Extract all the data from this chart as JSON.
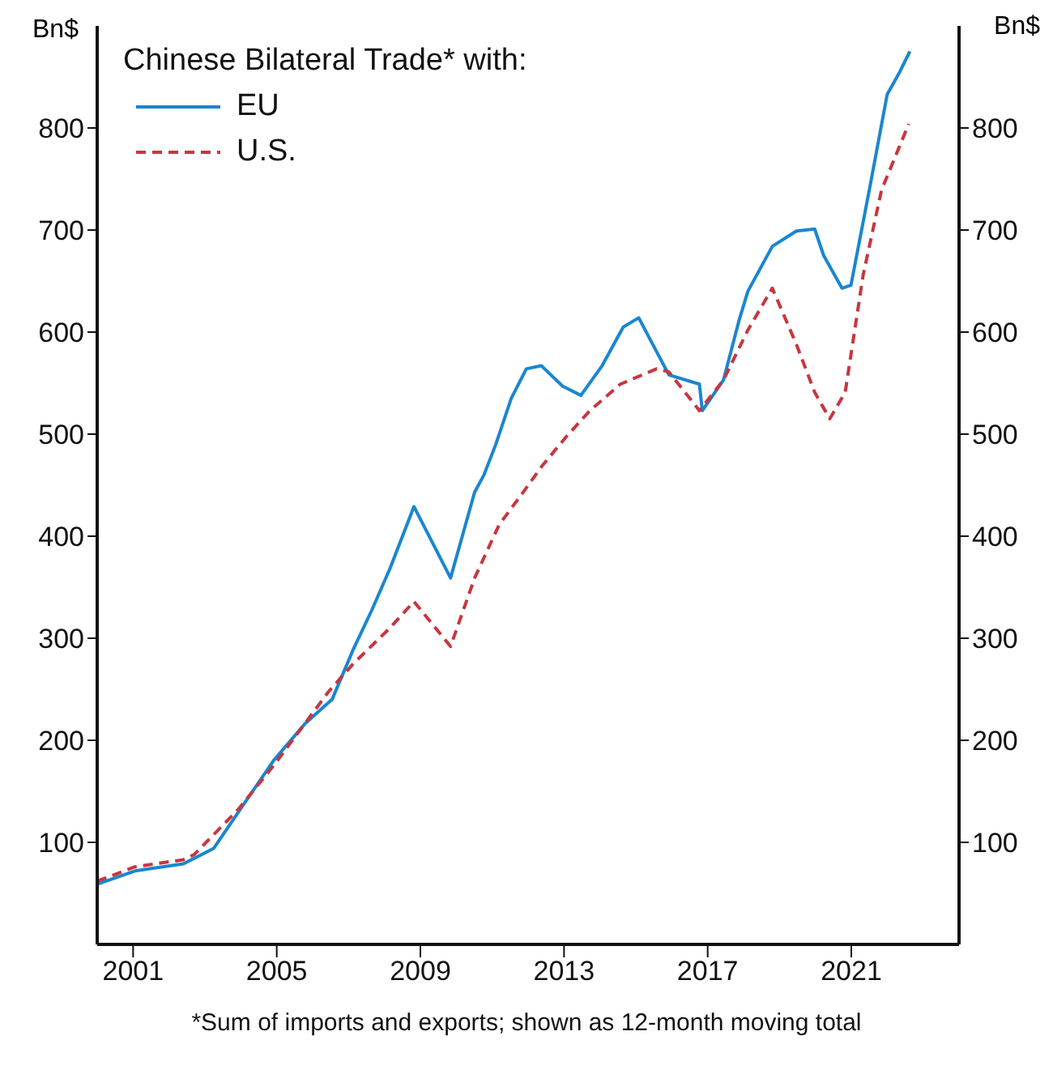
{
  "chart_data": {
    "type": "line",
    "legend_title": "Chinese Bilateral Trade* with:",
    "ylabel": "Bn$",
    "y2label": "Bn$",
    "annotations": [
      "*Sum of imports and exports; shown as 12-month moving total"
    ],
    "xlim": [
      2000,
      2024
    ],
    "xticks": [
      2001,
      2005,
      2009,
      2013,
      2017,
      2021
    ],
    "ylim": [
      0,
      900
    ],
    "yticks": [
      100,
      200,
      300,
      400,
      500,
      600,
      700,
      800
    ],
    "y2lim": [
      0,
      900
    ],
    "y2ticks": [
      100,
      200,
      300,
      400,
      500,
      600,
      700,
      800
    ],
    "legend": "top left",
    "marker": "none",
    "series": [
      {
        "name": "EU",
        "color": "#1a86d0",
        "line_style": "solid",
        "x": [
          2000.0,
          2001.05,
          2002.4,
          2003.24,
          2003.92,
          2004.93,
          2005.78,
          2006.54,
          2007.13,
          2007.64,
          2008.15,
          2008.82,
          2009.84,
          2010.51,
          2010.77,
          2011.1,
          2011.53,
          2011.95,
          2012.37,
          2012.96,
          2013.47,
          2014.06,
          2014.65,
          2015.08,
          2015.92,
          2016.77,
          2016.85,
          2017.44,
          2017.87,
          2018.12,
          2018.8,
          2019.47,
          2019.98,
          2020.23,
          2020.74,
          2020.99,
          2021.5,
          2022.0,
          2022.35,
          2022.63
        ],
        "values": [
          59,
          72,
          79,
          94,
          129,
          181,
          216,
          240,
          289,
          327,
          368,
          429,
          359,
          443,
          460,
          490,
          535,
          564,
          567,
          547,
          538,
          567,
          605,
          614,
          558,
          549,
          523,
          553,
          611,
          640,
          684,
          699,
          701,
          675,
          643,
          646,
          739,
          833,
          855,
          875
        ]
      },
      {
        "name": "U.S.",
        "color": "#c8363f",
        "line_style": "dashed",
        "x": [
          2000.0,
          2001.05,
          2002.4,
          2002.7,
          2003.92,
          2004.93,
          2006.45,
          2007.13,
          2008.15,
          2008.82,
          2009.84,
          2010.51,
          2011.19,
          2011.86,
          2012.37,
          2013.05,
          2013.72,
          2014.57,
          2015.58,
          2015.92,
          2016.77,
          2017.44,
          2018.12,
          2018.8,
          2019.47,
          2019.98,
          2020.4,
          2020.83,
          2021.33,
          2021.84,
          2022.6
        ],
        "values": [
          62,
          76,
          83,
          88,
          132,
          176,
          248,
          275,
          310,
          336,
          292,
          359,
          411,
          443,
          468,
          497,
          523,
          549,
          564,
          561,
          523,
          553,
          602,
          643,
          588,
          541,
          515,
          541,
          656,
          739,
          804
        ]
      }
    ]
  }
}
